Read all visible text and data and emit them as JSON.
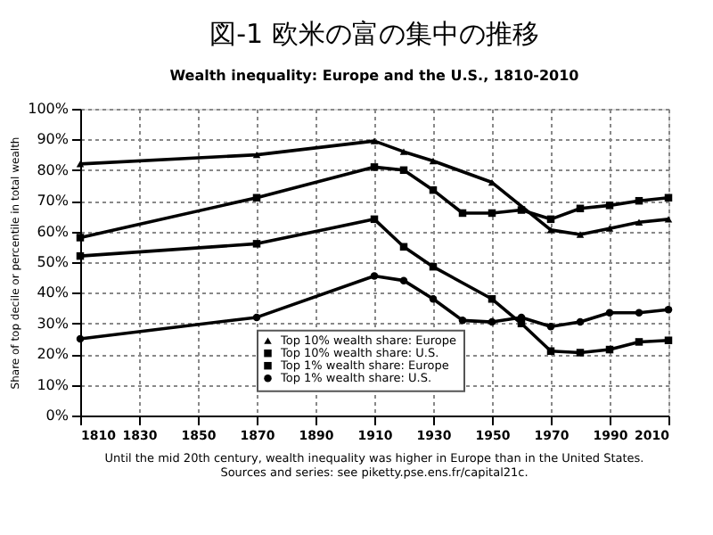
{
  "chart_data": {
    "type": "line",
    "title": "図-1  欧米の富の集中の推移",
    "subtitle": "Wealth inequality:  Europe and the U.S., 1810-2010",
    "ylabel": "Share of top decile or percentile in total wealth",
    "xlim": [
      1810,
      2010
    ],
    "xticks": [
      1810,
      1830,
      1850,
      1870,
      1890,
      1910,
      1930,
      1950,
      1970,
      1990,
      2010
    ],
    "ylim": [
      0,
      100
    ],
    "yticks": [
      {
        "value": 0,
        "label": "0%"
      },
      {
        "value": 10,
        "label": "10%"
      },
      {
        "value": 20,
        "label": "20%"
      },
      {
        "value": 30,
        "label": "30%"
      },
      {
        "value": 40,
        "label": "40%"
      },
      {
        "value": 50,
        "label": "50%"
      },
      {
        "value": 60,
        "label": "60%"
      },
      {
        "value": 70,
        "label": "70%"
      },
      {
        "value": 80,
        "label": "80%"
      },
      {
        "value": 90,
        "label": "90%"
      },
      {
        "value": 100,
        "label": "100%"
      }
    ],
    "grid": true,
    "legend": "bottom",
    "line_style": "solid",
    "series": [
      {
        "name": "Top 10% wealth share: Europe",
        "color": "#000000",
        "marker": "triangle",
        "x": [
          1810,
          1870,
          1910,
          1920,
          1930,
          1950,
          1970,
          1980,
          1990,
          2000,
          2010
        ],
        "values": [
          82,
          85,
          89.5,
          86,
          83,
          76,
          60.5,
          59,
          61,
          63,
          64
        ]
      },
      {
        "name": "Top 10% wealth share: U.S.",
        "color": "#000000",
        "marker": "square",
        "x": [
          1810,
          1870,
          1910,
          1920,
          1930,
          1940,
          1950,
          1960,
          1970,
          1980,
          1990,
          2000,
          2010
        ],
        "values": [
          58,
          71,
          81,
          80,
          73.5,
          66,
          66,
          67,
          64,
          67.5,
          68.5,
          70,
          71
        ]
      },
      {
        "name": "Top 1% wealth share: Europe",
        "color": "#000000",
        "marker": "square",
        "x": [
          1810,
          1870,
          1910,
          1920,
          1930,
          1950,
          1960,
          1970,
          1980,
          1990,
          2000,
          2010
        ],
        "values": [
          52,
          56,
          64,
          55,
          48.5,
          38,
          30,
          21,
          20.5,
          21.5,
          24,
          24.5
        ]
      },
      {
        "name": "Top 1% wealth share: U.S.",
        "color": "#000000",
        "marker": "circle",
        "x": [
          1810,
          1870,
          1910,
          1920,
          1930,
          1940,
          1950,
          1960,
          1970,
          1980,
          1990,
          2000,
          2010
        ],
        "values": [
          25,
          32,
          45.5,
          44,
          38,
          31,
          30.5,
          32,
          29,
          30.5,
          33.5,
          33.5,
          34.5
        ]
      }
    ],
    "annotations": [
      "Until the mid 20th century, wealth inequality was higher in Europe than in the United States.",
      "Sources and series: see piketty.pse.ens.fr/capital21c."
    ]
  }
}
